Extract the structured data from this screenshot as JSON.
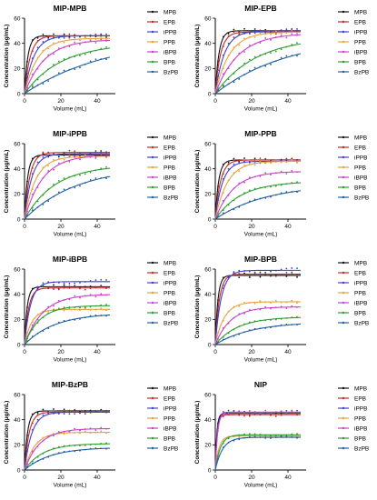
{
  "figure": {
    "series_names": [
      "MPB",
      "EPB",
      "iPPB",
      "PPB",
      "iBPB",
      "BPB",
      "BzPB"
    ],
    "series_colors": {
      "MPB": "#111111",
      "EPB": "#c62828",
      "iPPB": "#3f3fd0",
      "PPB": "#e6a23c",
      "iBPB": "#c940c9",
      "BPB": "#2e9e2e",
      "BzPB": "#1f5f9f"
    },
    "marker_color": "#2e7d32"
  },
  "chart_data": [
    {
      "type": "line",
      "title": "MIP-MPB",
      "xlabel": "Volume (mL)",
      "ylabel": "Concentration (μg/mL)",
      "xlim": [
        0,
        50
      ],
      "ylim": [
        0,
        60
      ],
      "xticks": [
        0,
        20,
        40
      ],
      "yticks": [
        0,
        20,
        40,
        60
      ],
      "grid": false,
      "legend": "right",
      "series": [
        {
          "name": "MPB",
          "plateau": 46,
          "k": 0.55
        },
        {
          "name": "EPB",
          "plateau": 46,
          "k": 0.32
        },
        {
          "name": "iPPB",
          "plateau": 46,
          "k": 0.2
        },
        {
          "name": "PPB",
          "plateau": 44,
          "k": 0.14
        },
        {
          "name": "iBPB",
          "plateau": 43,
          "k": 0.09
        },
        {
          "name": "BPB",
          "plateau": 40,
          "k": 0.05
        },
        {
          "name": "BzPB",
          "plateau": 45,
          "k": 0.022
        }
      ]
    },
    {
      "type": "line",
      "title": "MIP-EPB",
      "xlabel": "Volume (mL)",
      "ylabel": "Concentration (μg/mL)",
      "xlim": [
        0,
        50
      ],
      "ylim": [
        0,
        60
      ],
      "xticks": [
        0,
        20,
        40
      ],
      "yticks": [
        0,
        20,
        40,
        60
      ],
      "grid": false,
      "legend": "right",
      "series": [
        {
          "name": "MPB",
          "plateau": 50,
          "k": 0.5
        },
        {
          "name": "EPB",
          "plateau": 49,
          "k": 0.35
        },
        {
          "name": "iPPB",
          "plateau": 50,
          "k": 0.2
        },
        {
          "name": "PPB",
          "plateau": 49,
          "k": 0.13
        },
        {
          "name": "iBPB",
          "plateau": 48,
          "k": 0.08
        },
        {
          "name": "BPB",
          "plateau": 45,
          "k": 0.045
        },
        {
          "name": "BzPB",
          "plateau": 46,
          "k": 0.025
        }
      ]
    },
    {
      "type": "line",
      "title": "MIP-iPPB",
      "xlabel": "Volume (mL)",
      "ylabel": "Concentration (μg/mL)",
      "xlim": [
        0,
        50
      ],
      "ylim": [
        0,
        60
      ],
      "xticks": [
        0,
        20,
        40
      ],
      "yticks": [
        0,
        20,
        40,
        60
      ],
      "grid": false,
      "legend": "right",
      "series": [
        {
          "name": "MPB",
          "plateau": 51,
          "k": 0.6
        },
        {
          "name": "EPB",
          "plateau": 53,
          "k": 0.35
        },
        {
          "name": "iPPB",
          "plateau": 52,
          "k": 0.25
        },
        {
          "name": "PPB",
          "plateau": 50,
          "k": 0.16
        },
        {
          "name": "iBPB",
          "plateau": 51,
          "k": 0.1
        },
        {
          "name": "BPB",
          "plateau": 43,
          "k": 0.06
        },
        {
          "name": "BzPB",
          "plateau": 42,
          "k": 0.035
        }
      ]
    },
    {
      "type": "line",
      "title": "MIP-PPB",
      "xlabel": "Volume (mL)",
      "ylabel": "Concentration (μg/mL)",
      "xlim": [
        0,
        50
      ],
      "ylim": [
        0,
        60
      ],
      "xticks": [
        0,
        20,
        40
      ],
      "yticks": [
        0,
        20,
        40,
        60
      ],
      "grid": false,
      "legend": "right",
      "series": [
        {
          "name": "MPB",
          "plateau": 47,
          "k": 0.55
        },
        {
          "name": "EPB",
          "plateau": 47,
          "k": 0.35
        },
        {
          "name": "iPPB",
          "plateau": 46,
          "k": 0.25
        },
        {
          "name": "PPB",
          "plateau": 46,
          "k": 0.15
        },
        {
          "name": "iBPB",
          "plateau": 38,
          "k": 0.1
        },
        {
          "name": "BPB",
          "plateau": 30,
          "k": 0.07
        },
        {
          "name": "BzPB",
          "plateau": 28,
          "k": 0.035
        }
      ]
    },
    {
      "type": "line",
      "title": "MIP-iBPB",
      "xlabel": "Volume (mL)",
      "ylabel": "Concentration (μg/mL)",
      "xlim": [
        0,
        50
      ],
      "ylim": [
        0,
        60
      ],
      "xticks": [
        0,
        20,
        40
      ],
      "yticks": [
        0,
        20,
        40,
        60
      ],
      "grid": false,
      "legend": "right",
      "series": [
        {
          "name": "MPB",
          "plateau": 46,
          "k": 0.7
        },
        {
          "name": "EPB",
          "plateau": 45,
          "k": 0.45
        },
        {
          "name": "iPPB",
          "plateau": 50,
          "k": 0.3
        },
        {
          "name": "PPB",
          "plateau": 28,
          "k": 0.25
        },
        {
          "name": "iBPB",
          "plateau": 40,
          "k": 0.1
        },
        {
          "name": "BPB",
          "plateau": 31,
          "k": 0.12
        },
        {
          "name": "BzPB",
          "plateau": 25,
          "k": 0.06
        }
      ]
    },
    {
      "type": "line",
      "title": "MIP-BPB",
      "xlabel": "Volume (mL)",
      "ylabel": "Concentration (μg/mL)",
      "xlim": [
        0,
        50
      ],
      "ylim": [
        0,
        60
      ],
      "xticks": [
        0,
        20,
        40
      ],
      "yticks": [
        0,
        20,
        40,
        60
      ],
      "grid": false,
      "legend": "right",
      "series": [
        {
          "name": "MPB",
          "plateau": 55,
          "k": 0.7
        },
        {
          "name": "EPB",
          "plateau": 56,
          "k": 0.45
        },
        {
          "name": "iPPB",
          "plateau": 59,
          "k": 0.3
        },
        {
          "name": "PPB",
          "plateau": 34,
          "k": 0.2
        },
        {
          "name": "iBPB",
          "plateau": 30,
          "k": 0.12
        },
        {
          "name": "BPB",
          "plateau": 22,
          "k": 0.08
        },
        {
          "name": "BzPB",
          "plateau": 18,
          "k": 0.05
        }
      ]
    },
    {
      "type": "line",
      "title": "MIP-BzPB",
      "xlabel": "Volume (mL)",
      "ylabel": "Concentration (μg/mL)",
      "xlim": [
        0,
        50
      ],
      "ylim": [
        0,
        60
      ],
      "xticks": [
        0,
        20,
        40
      ],
      "yticks": [
        0,
        20,
        40,
        60
      ],
      "grid": false,
      "legend": "right",
      "series": [
        {
          "name": "MPB",
          "plateau": 47,
          "k": 0.6
        },
        {
          "name": "EPB",
          "plateau": 46,
          "k": 0.4
        },
        {
          "name": "iPPB",
          "plateau": 46,
          "k": 0.25
        },
        {
          "name": "PPB",
          "plateau": 30,
          "k": 0.18
        },
        {
          "name": "iBPB",
          "plateau": 33,
          "k": 0.12
        },
        {
          "name": "BPB",
          "plateau": 21,
          "k": 0.1
        },
        {
          "name": "BzPB",
          "plateau": 18,
          "k": 0.07
        }
      ]
    },
    {
      "type": "line",
      "title": "NIP",
      "xlabel": "Volume (mL)",
      "ylabel": "Concentration (μg/mL)",
      "xlim": [
        0,
        50
      ],
      "ylim": [
        0,
        60
      ],
      "xticks": [
        0,
        20,
        40
      ],
      "yticks": [
        0,
        20,
        40,
        60
      ],
      "grid": false,
      "legend": "right",
      "series": [
        {
          "name": "MPB",
          "plateau": 45,
          "k": 1.2
        },
        {
          "name": "EPB",
          "plateau": 44,
          "k": 1.0
        },
        {
          "name": "iPPB",
          "plateau": 46,
          "k": 0.9
        },
        {
          "name": "PPB",
          "plateau": 27,
          "k": 0.5
        },
        {
          "name": "iBPB",
          "plateau": 46,
          "k": 0.8
        },
        {
          "name": "BPB",
          "plateau": 28,
          "k": 0.35
        },
        {
          "name": "BzPB",
          "plateau": 26,
          "k": 0.25
        }
      ]
    }
  ]
}
